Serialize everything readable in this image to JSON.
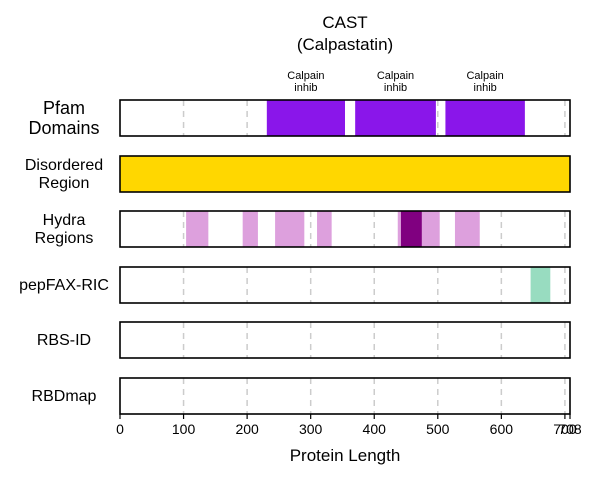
{
  "chart_data": {
    "type": "track",
    "title": "CAST",
    "subtitle": "(Calpastatin)",
    "xlabel": "Protein Length",
    "xlim": [
      0,
      708
    ],
    "xticks": [
      0,
      100,
      200,
      300,
      400,
      500,
      600,
      700,
      708
    ],
    "xtick_labels": [
      "0",
      "100",
      "200",
      "300",
      "400",
      "500",
      "600",
      "700",
      "708"
    ],
    "protein_length": 708,
    "grid_dashed_at": [
      100,
      200,
      300,
      400,
      500,
      600,
      700
    ],
    "tracks": [
      {
        "name": "Pfam\nDomains",
        "regions": [
          {
            "start": 231,
            "end": 354,
            "color": "#8a16ea",
            "label": "Calpain\ninhib"
          },
          {
            "start": 370,
            "end": 497,
            "color": "#8a16ea",
            "label": "Calpain\ninhib"
          },
          {
            "start": 512,
            "end": 637,
            "color": "#8a16ea",
            "label": "Calpain\ninhib"
          }
        ]
      },
      {
        "name": "Disordered\nRegion",
        "regions": [
          {
            "start": 0,
            "end": 708,
            "color": "#ffd700"
          }
        ]
      },
      {
        "name": "Hydra\nRegions",
        "regions": [
          {
            "start": 104,
            "end": 139,
            "color": "#dda0dd"
          },
          {
            "start": 193,
            "end": 217,
            "color": "#dda0dd"
          },
          {
            "start": 244,
            "end": 290,
            "color": "#dda0dd"
          },
          {
            "start": 310,
            "end": 333,
            "color": "#dda0dd"
          },
          {
            "start": 437,
            "end": 442,
            "color": "#dda0dd"
          },
          {
            "start": 442,
            "end": 475,
            "color": "#800080"
          },
          {
            "start": 475,
            "end": 503,
            "color": "#dda0dd"
          },
          {
            "start": 527,
            "end": 566,
            "color": "#dda0dd"
          }
        ]
      },
      {
        "name": "pepFAX-RIC",
        "regions": [
          {
            "start": 646,
            "end": 677,
            "color": "#98dcc0"
          }
        ]
      },
      {
        "name": "RBS-ID",
        "regions": []
      },
      {
        "name": "RBDmap",
        "regions": []
      }
    ]
  }
}
